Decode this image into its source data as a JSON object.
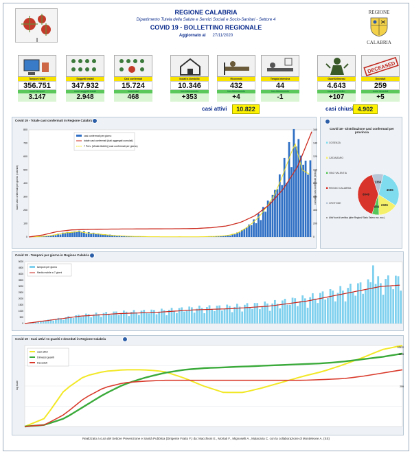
{
  "header": {
    "title": "REGIONE CALABRIA",
    "department": "Dipartimento Tutela della Salute e Servizi Sociali e Socio-Sanitari - Settore 4",
    "bulletin": "COVID 19 - BOLLETTINO REGIONALE",
    "updated_label": "Aggiornato al",
    "updated_date": "27/11/2020",
    "crest_top": "REGIONE",
    "crest_bottom": "CALABRIA"
  },
  "cards": [
    {
      "label": "Tamponi totali",
      "value": "356.751",
      "sub_label": "nuovi tamponi",
      "sub_value": "3.147"
    },
    {
      "label": "Soggetti testati",
      "value": "347.932",
      "sub_label": "nuovi soggetti testati",
      "sub_value": "2.948"
    },
    {
      "label": "Casi confermati",
      "value": "15.724",
      "sub_label": "nuovi casi",
      "sub_value": "468"
    },
    {
      "label": "Isolati a domicilio",
      "value": "10.346",
      "sub_label": "Incr./decremento",
      "sub_value": "+353"
    },
    {
      "label": "Ricoverati",
      "value": "432",
      "sub_label": "Incr./decremento",
      "sub_value": "+4"
    },
    {
      "label": "Terapia intensiva",
      "value": "44",
      "sub_label": "Incr./decremento",
      "sub_value": "-1"
    },
    {
      "label": "Guariti/dimessi",
      "value": "4.643",
      "sub_label": "nuovi guariti/dim.",
      "sub_value": "+107"
    },
    {
      "label": "Deceduti",
      "value": "259",
      "sub_label": "nuovi deceduti",
      "sub_value": "+5"
    }
  ],
  "summary": {
    "active_label": "casi attivi",
    "active_value": "10.822",
    "closed_label": "casi chiusi",
    "closed_value": "4.902",
    "stamp": "DECEASED"
  },
  "chart_data": [
    {
      "type": "bar",
      "title": "Covid 19 - Totale casi confermati in Regione Calabria",
      "ylabel": "nuovi casi confermati per giorno (colonne)",
      "y2label": "cumulato casi confermati (linea)",
      "legend": [
        "casi confermati per giorno",
        "totale casi confermati (dati aggregati cumulati)",
        "7 Prev. (Media Mobile) (casi confermati per giorno)"
      ],
      "yticks_left": [
        "0",
        "100",
        "200",
        "300",
        "400",
        "500",
        "600",
        "700",
        "800"
      ],
      "yticks_right": [
        "0",
        "2000",
        "4000",
        "6000",
        "8000",
        "10000",
        "12000",
        "14000",
        "16000"
      ],
      "n_days": 275,
      "series": [
        {
          "name": "casi confermati per giorno",
          "values": [
            0,
            2,
            5,
            10,
            20,
            30,
            35,
            40,
            30,
            25,
            20,
            15,
            10,
            8,
            5,
            4,
            3,
            2,
            2,
            1,
            1,
            2,
            1,
            1,
            2,
            3,
            5,
            8,
            15,
            30,
            60,
            100,
            150,
            220,
            300,
            420,
            560,
            700,
            500,
            468
          ]
        },
        {
          "name": "totale casi confermati",
          "values": [
            0,
            300,
            800,
            1050,
            1120,
            1160,
            1180,
            1190,
            1200,
            1210,
            1220,
            1240,
            1280,
            1400,
            1650,
            2200,
            3200,
            4800,
            7200,
            10500,
            15724
          ]
        }
      ]
    },
    {
      "type": "pie",
      "title": "Covid 19 - Distribuzione casi confermati per provincia",
      "provinces": [
        "COSENZA",
        "CATANZARO",
        "VIBO VALENTIA",
        "REGGIO CALABRIA",
        "CROTONE"
      ],
      "note": "Altri/ fuori di verifica (altre Regioni/ Stato Estero ecc. ecc.)",
      "values": [
        4565,
        2326,
        836,
        6049,
        1366
      ],
      "labels": [
        "4565",
        "2326",
        "836",
        "6049",
        "1366"
      ],
      "colors": [
        "#7fdcef",
        "#f5f06a",
        "#57c65a",
        "#d9342b",
        "#b8c6d6"
      ]
    },
    {
      "type": "bar",
      "title": "Covid 19 - Tamponi per giorno in Regione Calabria",
      "legend": [
        "tamponi per giorno",
        "Media mobile a 7 giorni"
      ],
      "yticks": [
        "0",
        "500",
        "1000",
        "1500",
        "2000",
        "2500",
        "3000",
        "3500",
        "4000",
        "4500",
        "5000"
      ]
    },
    {
      "type": "line",
      "title": "Covid 19 - Casi attivi vs guariti e deceduti in Regione Calabria",
      "ylabel": "log scale",
      "legend": [
        "casi attivi",
        "Dimessi guariti",
        "Deceduti"
      ],
      "end_labels": [
        "10822",
        "4643",
        "259"
      ],
      "colors": [
        "#f2e827",
        "#3aaa3a",
        "#d93a2b"
      ]
    }
  ],
  "footer": "Realizzato a cura del Settore Prevenzione e Sanità Pubblica (Dirigente Fratto F.) da: Macchioni E., Mortati F., Mignoselli A., Malacaria C. con la collaborazione di Monteleone A. (SS)"
}
